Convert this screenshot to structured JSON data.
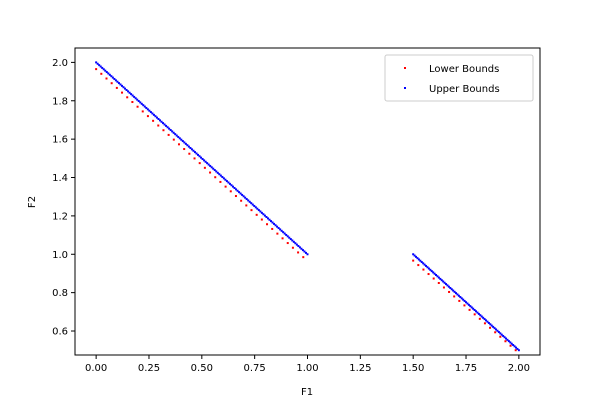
{
  "chart_data": {
    "type": "scatter",
    "xlabel": "F1",
    "ylabel": "F2",
    "xlim": [
      -0.1,
      2.1
    ],
    "ylim": [
      0.475,
      2.075
    ],
    "x_ticks": [
      0.0,
      0.25,
      0.5,
      0.75,
      1.0,
      1.25,
      1.5,
      1.75,
      2.0
    ],
    "x_tick_labels": [
      "0.00",
      "0.25",
      "0.50",
      "0.75",
      "1.00",
      "1.25",
      "1.50",
      "1.75",
      "2.00"
    ],
    "y_ticks": [
      0.6,
      0.8,
      1.0,
      1.2,
      1.4,
      1.6,
      1.8,
      2.0
    ],
    "y_tick_labels": [
      "0.6",
      "0.8",
      "1.0",
      "1.2",
      "1.4",
      "1.6",
      "1.8",
      "2.0"
    ],
    "legend_position": "top-right",
    "series": [
      {
        "name": "Lower Bounds",
        "color": "#ff0000",
        "segments": [
          {
            "x_start": 0.0,
            "x_end": 0.98,
            "count": 41,
            "y_at_start": 1.965,
            "y_at_end": 0.985
          },
          {
            "x_start": 1.5,
            "x_end": 1.985,
            "count": 21,
            "y_at_start": 0.967,
            "y_at_end": 0.5
          }
        ]
      },
      {
        "name": "Upper Bounds",
        "color": "#0000ff",
        "segments": [
          {
            "x_start": 0.0,
            "x_end": 1.0,
            "count": 140,
            "y_at_start": 2.0,
            "y_at_end": 1.0
          },
          {
            "x_start": 1.5,
            "x_end": 2.0,
            "count": 75,
            "y_at_start": 1.0,
            "y_at_end": 0.5
          }
        ]
      }
    ]
  }
}
